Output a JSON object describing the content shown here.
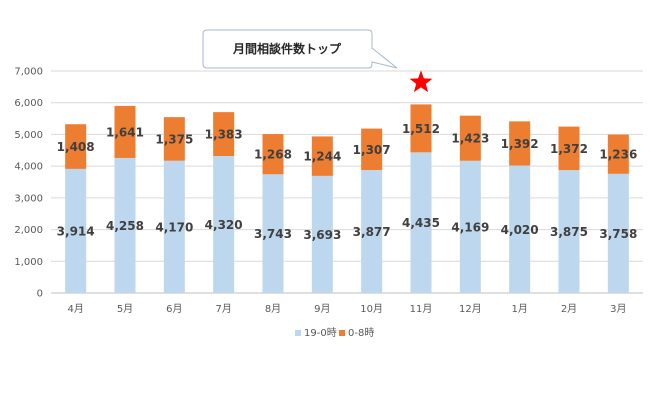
{
  "chart_data": {
    "type": "bar",
    "stacked": true,
    "categories": [
      "4月",
      "5月",
      "6月",
      "7月",
      "8月",
      "9月",
      "10月",
      "11月",
      "12月",
      "1月",
      "2月",
      "3月"
    ],
    "series": [
      {
        "name": "19-0時",
        "color": "#bdd7ee",
        "values": [
          3914,
          4258,
          4170,
          4320,
          3743,
          3693,
          3877,
          4435,
          4169,
          4020,
          3875,
          3758
        ],
        "labels": [
          "3,914",
          "4,258",
          "4,170",
          "4,320",
          "3,743",
          "3,693",
          "3,877",
          "4,435",
          "4,169",
          "4,020",
          "3,875",
          "3,758"
        ]
      },
      {
        "name": "0-8時",
        "color": "#ed7d31",
        "values": [
          1408,
          1641,
          1375,
          1383,
          1268,
          1244,
          1307,
          1512,
          1423,
          1392,
          1372,
          1236
        ],
        "labels": [
          "1,408",
          "1,641",
          "1,375",
          "1,383",
          "1,268",
          "1,244",
          "1,307",
          "1,512",
          "1,423",
          "1,392",
          "1,372",
          "1,236"
        ]
      }
    ],
    "ylim": [
      0,
      7000
    ],
    "y_ticks": [
      "0",
      "1,000",
      "2,000",
      "3,000",
      "4,000",
      "5,000",
      "6,000",
      "7,000"
    ],
    "grid": true,
    "legend_placement": "bottom-center",
    "annotation": {
      "text": "月間相談件数トップ",
      "target_category": "11月",
      "marker": "star",
      "marker_color": "#ff0000"
    }
  }
}
